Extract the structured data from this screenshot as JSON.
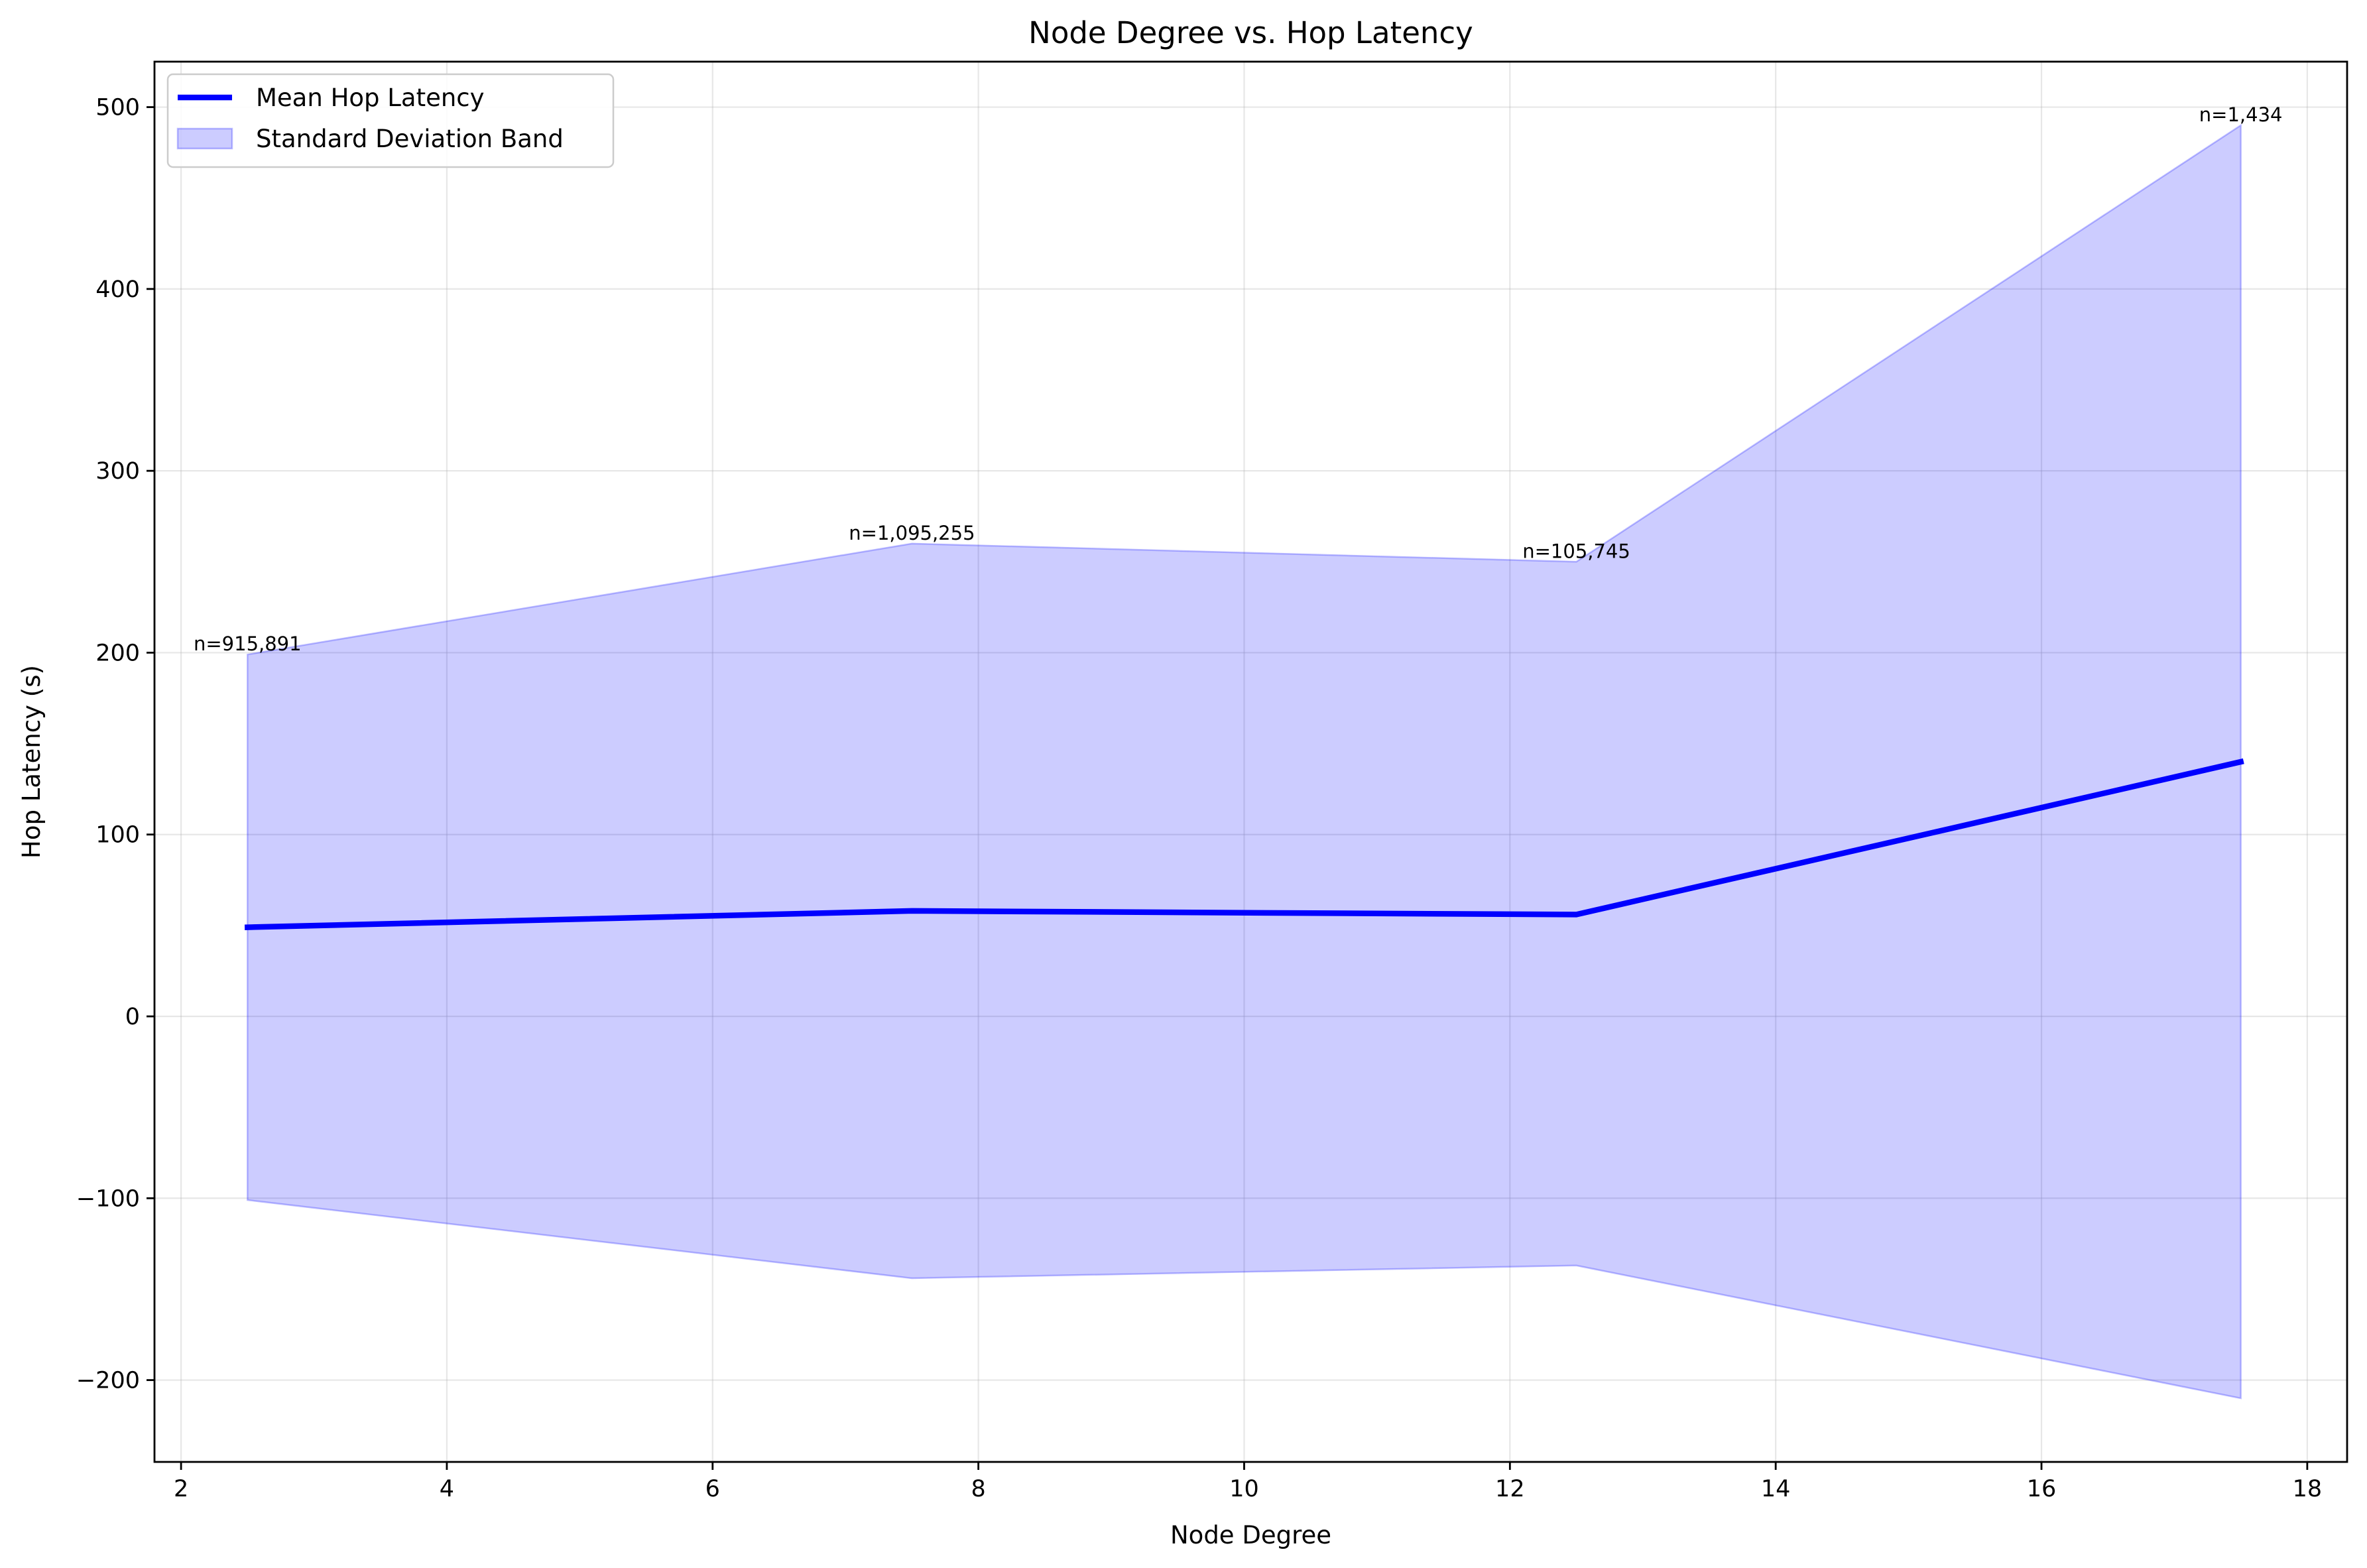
{
  "chart_data": {
    "type": "line",
    "title": "Node Degree vs. Hop Latency",
    "xlabel": "Node Degree",
    "ylabel": "Hop Latency (s)",
    "xlim": [
      1.8,
      18.3
    ],
    "ylim": [
      -245,
      525
    ],
    "xticks": [
      2,
      4,
      6,
      8,
      10,
      12,
      14,
      16,
      18
    ],
    "yticks": [
      -200,
      -100,
      0,
      100,
      200,
      300,
      400,
      500
    ],
    "grid": true,
    "legend_position": "top-left",
    "x": [
      2.5,
      7.5,
      12.5,
      17.5
    ],
    "series": [
      {
        "name": "Mean Hop Latency",
        "values": [
          49,
          58,
          56,
          140
        ],
        "color": "#0000ff"
      }
    ],
    "band": {
      "name": "Standard Deviation Band",
      "upper": [
        199,
        260,
        250,
        490
      ],
      "lower": [
        -101,
        -144,
        -137,
        -210
      ],
      "color": "#0000ff",
      "opacity": 0.2
    },
    "annotations": [
      {
        "x": 2.5,
        "y": 199,
        "text": "n=915,891"
      },
      {
        "x": 7.5,
        "y": 260,
        "text": "n=1,095,255"
      },
      {
        "x": 12.5,
        "y": 250,
        "text": "n=105,745"
      },
      {
        "x": 17.5,
        "y": 490,
        "text": "n=1,434"
      }
    ]
  }
}
